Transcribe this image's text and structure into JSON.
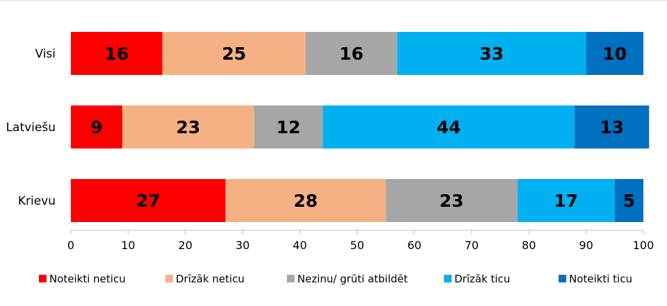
{
  "chart_data": {
    "type": "bar",
    "orientation": "horizontal",
    "stacked": true,
    "categories": [
      "Visi",
      "Latviešu",
      "Krievu"
    ],
    "series": [
      {
        "name": "Noteikti neticu",
        "color": "#ff0000",
        "values": [
          16,
          9,
          27
        ]
      },
      {
        "name": "Drīzāk neticu",
        "color": "#f4b183",
        "values": [
          25,
          23,
          28
        ]
      },
      {
        "name": "Nezinu/ grūti atbildēt",
        "color": "#a6a6a6",
        "values": [
          16,
          12,
          23
        ]
      },
      {
        "name": "Drīzāk ticu",
        "color": "#00b0f0",
        "values": [
          33,
          44,
          17
        ]
      },
      {
        "name": "Noteikti ticu",
        "color": "#0070c0",
        "values": [
          10,
          13,
          5
        ]
      }
    ],
    "x_ticks": [
      "0",
      "10",
      "20",
      "30",
      "40",
      "50",
      "60",
      "70",
      "80",
      "90",
      "100"
    ],
    "xlim": [
      0,
      100
    ],
    "title": "",
    "xlabel": "",
    "ylabel": "",
    "grid": false,
    "legend_position": "bottom"
  }
}
